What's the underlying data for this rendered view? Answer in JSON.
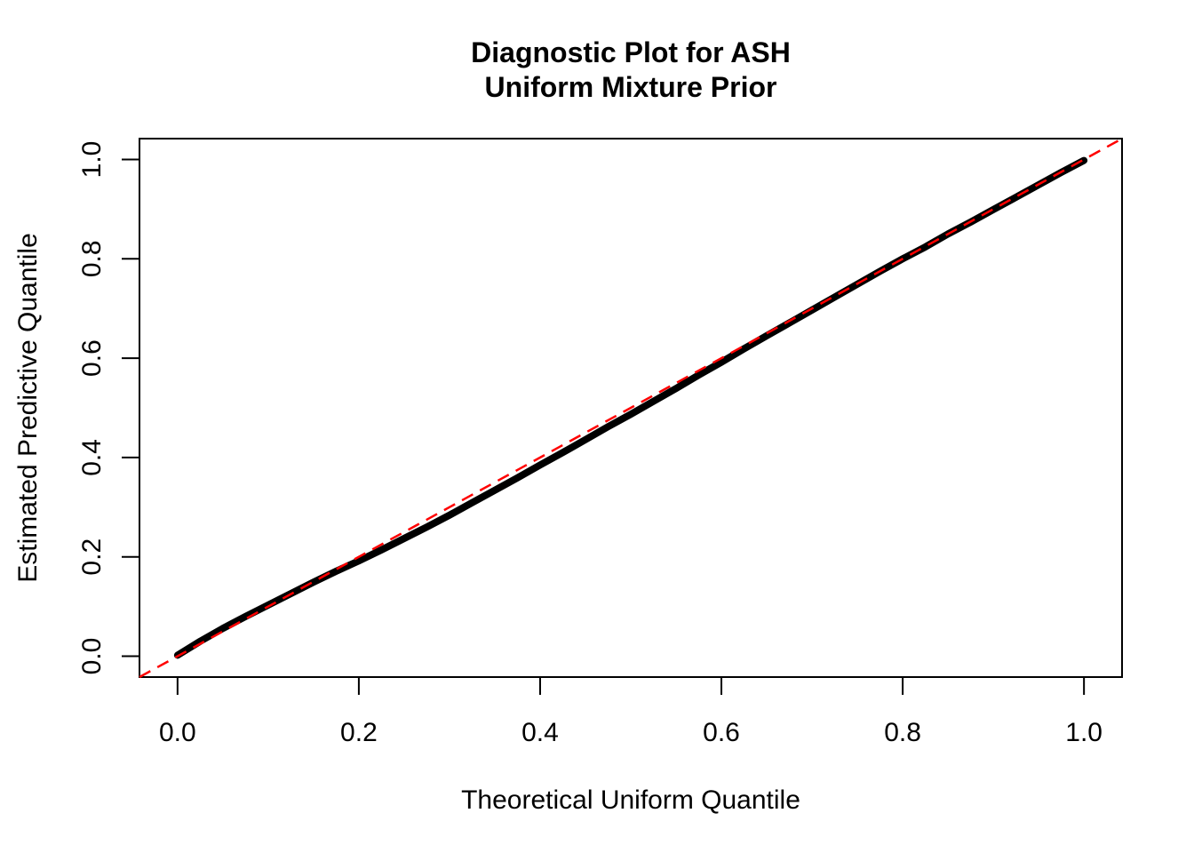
{
  "chart_data": {
    "type": "scatter",
    "subtype": "qq-uniform-diagnostic",
    "title_lines": [
      "Diagnostic Plot for ASH",
      "Uniform Mixture Prior"
    ],
    "xlabel": "Theoretical Uniform Quantile",
    "ylabel": "Estimated Predictive Quantile",
    "xlim": [
      -0.042,
      1.042
    ],
    "ylim": [
      -0.042,
      1.042
    ],
    "grid": false,
    "legend": false,
    "background_color": "#ffffff",
    "box_color": "#000000",
    "x_axis": {
      "tick_values": [
        0.0,
        0.2,
        0.4,
        0.6,
        0.8,
        1.0
      ],
      "tick_labels": [
        "0.0",
        "0.2",
        "0.4",
        "0.6",
        "0.8",
        "1.0"
      ]
    },
    "y_axis": {
      "tick_values": [
        0.0,
        0.2,
        0.4,
        0.6,
        0.8,
        1.0
      ],
      "tick_labels": [
        "0.0",
        "0.2",
        "0.4",
        "0.6",
        "0.8",
        "1.0"
      ]
    },
    "series": [
      {
        "name": "estimated-predictive-quantiles",
        "type": "point-curve",
        "color": "#000000",
        "stroke_width": 8,
        "points": [
          [
            0.0,
            0.002
          ],
          [
            0.025,
            0.03
          ],
          [
            0.05,
            0.056
          ],
          [
            0.075,
            0.08
          ],
          [
            0.1,
            0.103
          ],
          [
            0.125,
            0.126
          ],
          [
            0.15,
            0.149
          ],
          [
            0.175,
            0.171
          ],
          [
            0.2,
            0.192
          ],
          [
            0.225,
            0.214
          ],
          [
            0.25,
            0.237
          ],
          [
            0.275,
            0.26
          ],
          [
            0.3,
            0.284
          ],
          [
            0.325,
            0.309
          ],
          [
            0.35,
            0.334
          ],
          [
            0.375,
            0.359
          ],
          [
            0.4,
            0.385
          ],
          [
            0.425,
            0.41
          ],
          [
            0.45,
            0.436
          ],
          [
            0.475,
            0.462
          ],
          [
            0.5,
            0.487
          ],
          [
            0.525,
            0.513
          ],
          [
            0.55,
            0.539
          ],
          [
            0.575,
            0.566
          ],
          [
            0.6,
            0.592
          ],
          [
            0.625,
            0.619
          ],
          [
            0.65,
            0.645
          ],
          [
            0.675,
            0.671
          ],
          [
            0.7,
            0.697
          ],
          [
            0.725,
            0.723
          ],
          [
            0.75,
            0.749
          ],
          [
            0.775,
            0.775
          ],
          [
            0.8,
            0.8
          ],
          [
            0.825,
            0.824
          ],
          [
            0.85,
            0.85
          ],
          [
            0.875,
            0.874
          ],
          [
            0.9,
            0.899
          ],
          [
            0.925,
            0.924
          ],
          [
            0.95,
            0.949
          ],
          [
            0.975,
            0.974
          ],
          [
            1.0,
            0.998
          ]
        ]
      },
      {
        "name": "reference-line-y-equals-x",
        "type": "dashed-line",
        "color": "#FF0000",
        "stroke_width": 2.5,
        "dash": [
          14,
          9
        ],
        "from": [
          -0.042,
          -0.042
        ],
        "to": [
          1.042,
          1.042
        ]
      }
    ]
  }
}
